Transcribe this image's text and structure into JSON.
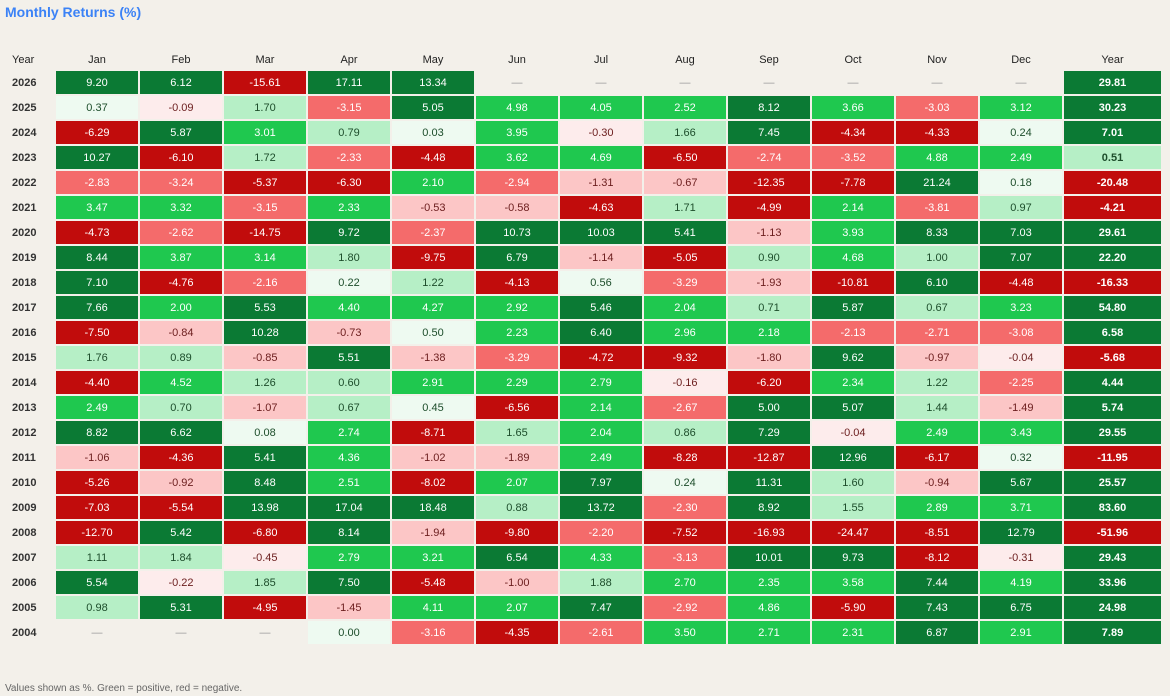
{
  "title": "Monthly Returns (%)",
  "footer": "Values shown as %. Green = positive, red = negative.",
  "chart_data": {
    "type": "heatmap",
    "title": "Monthly Returns (%)",
    "columns": [
      "Year",
      "Jan",
      "Feb",
      "Mar",
      "Apr",
      "May",
      "Jun",
      "Jul",
      "Aug",
      "Sep",
      "Oct",
      "Nov",
      "Dec",
      "Year"
    ],
    "empty_symbol": "—",
    "colors": {
      "strong_pos": "#0b7a34",
      "mid_pos": "#1fc84f",
      "weak_pos": "#b6efc6",
      "tiny_pos": "#eefaf1",
      "strong_neg": "#c10c0c",
      "mid_neg": "#f46b6b",
      "weak_neg": "#fcc6c6",
      "tiny_neg": "#fdecec"
    },
    "rows": [
      {
        "year": "2026",
        "months": [
          "9.20",
          "6.12",
          "-15.61",
          "17.11",
          "13.34",
          null,
          null,
          null,
          null,
          null,
          null,
          null
        ],
        "total": "29.81"
      },
      {
        "year": "2025",
        "months": [
          "0.37",
          "-0.09",
          "1.70",
          "-3.15",
          "5.05",
          "4.98",
          "4.05",
          "2.52",
          "8.12",
          "3.66",
          "-3.03",
          "3.12"
        ],
        "total": "30.23"
      },
      {
        "year": "2024",
        "months": [
          "-6.29",
          "5.87",
          "3.01",
          "0.79",
          "0.03",
          "3.95",
          "-0.30",
          "1.66",
          "7.45",
          "-4.34",
          "-4.33",
          "0.24"
        ],
        "total": "7.01"
      },
      {
        "year": "2023",
        "months": [
          "10.27",
          "-6.10",
          "1.72",
          "-2.33",
          "-4.48",
          "3.62",
          "4.69",
          "-6.50",
          "-2.74",
          "-3.52",
          "4.88",
          "2.49"
        ],
        "total": "0.51"
      },
      {
        "year": "2022",
        "months": [
          "-2.83",
          "-3.24",
          "-5.37",
          "-6.30",
          "2.10",
          "-2.94",
          "-1.31",
          "-0.67",
          "-12.35",
          "-7.78",
          "21.24",
          "0.18"
        ],
        "total": "-20.48"
      },
      {
        "year": "2021",
        "months": [
          "3.47",
          "3.32",
          "-3.15",
          "2.33",
          "-0.53",
          "-0.58",
          "-4.63",
          "1.71",
          "-4.99",
          "2.14",
          "-3.81",
          "0.97"
        ],
        "total": "-4.21"
      },
      {
        "year": "2020",
        "months": [
          "-4.73",
          "-2.62",
          "-14.75",
          "9.72",
          "-2.37",
          "10.73",
          "10.03",
          "5.41",
          "-1.13",
          "3.93",
          "8.33",
          "7.03"
        ],
        "total": "29.61"
      },
      {
        "year": "2019",
        "months": [
          "8.44",
          "3.87",
          "3.14",
          "1.80",
          "-9.75",
          "6.79",
          "-1.14",
          "-5.05",
          "0.90",
          "4.68",
          "1.00",
          "7.07"
        ],
        "total": "22.20"
      },
      {
        "year": "2018",
        "months": [
          "7.10",
          "-4.76",
          "-2.16",
          "0.22",
          "1.22",
          "-4.13",
          "0.56",
          "-3.29",
          "-1.93",
          "-10.81",
          "6.10",
          "-4.48"
        ],
        "total": "-16.33"
      },
      {
        "year": "2017",
        "months": [
          "7.66",
          "2.00",
          "5.53",
          "4.40",
          "4.27",
          "2.92",
          "5.46",
          "2.04",
          "0.71",
          "5.87",
          "0.67",
          "3.23"
        ],
        "total": "54.80"
      },
      {
        "year": "2016",
        "months": [
          "-7.50",
          "-0.84",
          "10.28",
          "-0.73",
          "0.50",
          "2.23",
          "6.40",
          "2.96",
          "2.18",
          "-2.13",
          "-2.71",
          "-3.08"
        ],
        "total": "6.58"
      },
      {
        "year": "2015",
        "months": [
          "1.76",
          "0.89",
          "-0.85",
          "5.51",
          "-1.38",
          "-3.29",
          "-4.72",
          "-9.32",
          "-1.80",
          "9.62",
          "-0.97",
          "-0.04"
        ],
        "total": "-5.68"
      },
      {
        "year": "2014",
        "months": [
          "-4.40",
          "4.52",
          "1.26",
          "0.60",
          "2.91",
          "2.29",
          "2.79",
          "-0.16",
          "-6.20",
          "2.34",
          "1.22",
          "-2.25"
        ],
        "total": "4.44"
      },
      {
        "year": "2013",
        "months": [
          "2.49",
          "0.70",
          "-1.07",
          "0.67",
          "0.45",
          "-6.56",
          "2.14",
          "-2.67",
          "5.00",
          "5.07",
          "1.44",
          "-1.49"
        ],
        "total": "5.74"
      },
      {
        "year": "2012",
        "months": [
          "8.82",
          "6.62",
          "0.08",
          "2.74",
          "-8.71",
          "1.65",
          "2.04",
          "0.86",
          "7.29",
          "-0.04",
          "2.49",
          "3.43"
        ],
        "total": "29.55"
      },
      {
        "year": "2011",
        "months": [
          "-1.06",
          "-4.36",
          "5.41",
          "4.36",
          "-1.02",
          "-1.89",
          "2.49",
          "-8.28",
          "-12.87",
          "12.96",
          "-6.17",
          "0.32"
        ],
        "total": "-11.95"
      },
      {
        "year": "2010",
        "months": [
          "-5.26",
          "-0.92",
          "8.48",
          "2.51",
          "-8.02",
          "2.07",
          "7.97",
          "0.24",
          "11.31",
          "1.60",
          "-0.94",
          "5.67"
        ],
        "total": "25.57"
      },
      {
        "year": "2009",
        "months": [
          "-7.03",
          "-5.54",
          "13.98",
          "17.04",
          "18.48",
          "0.88",
          "13.72",
          "-2.30",
          "8.92",
          "1.55",
          "2.89",
          "3.71"
        ],
        "total": "83.60"
      },
      {
        "year": "2008",
        "months": [
          "-12.70",
          "5.42",
          "-6.80",
          "8.14",
          "-1.94",
          "-9.80",
          "-2.20",
          "-7.52",
          "-16.93",
          "-24.47",
          "-8.51",
          "12.79"
        ],
        "total": "-51.96"
      },
      {
        "year": "2007",
        "months": [
          "1.11",
          "1.84",
          "-0.45",
          "2.79",
          "3.21",
          "6.54",
          "4.33",
          "-3.13",
          "10.01",
          "9.73",
          "-8.12",
          "-0.31"
        ],
        "total": "29.43"
      },
      {
        "year": "2006",
        "months": [
          "5.54",
          "-0.22",
          "1.85",
          "7.50",
          "-5.48",
          "-1.00",
          "1.88",
          "2.70",
          "2.35",
          "3.58",
          "7.44",
          "4.19"
        ],
        "total": "33.96"
      },
      {
        "year": "2005",
        "months": [
          "0.98",
          "5.31",
          "-4.95",
          "-1.45",
          "4.11",
          "2.07",
          "7.47",
          "-2.92",
          "4.86",
          "-5.90",
          "7.43",
          "6.75"
        ],
        "total": "24.98"
      },
      {
        "year": "2004",
        "months": [
          null,
          null,
          null,
          "0.00",
          "-3.16",
          "-4.35",
          "-2.61",
          "3.50",
          "2.71",
          "2.31",
          "6.87",
          "2.91"
        ],
        "total": "7.89"
      }
    ]
  }
}
